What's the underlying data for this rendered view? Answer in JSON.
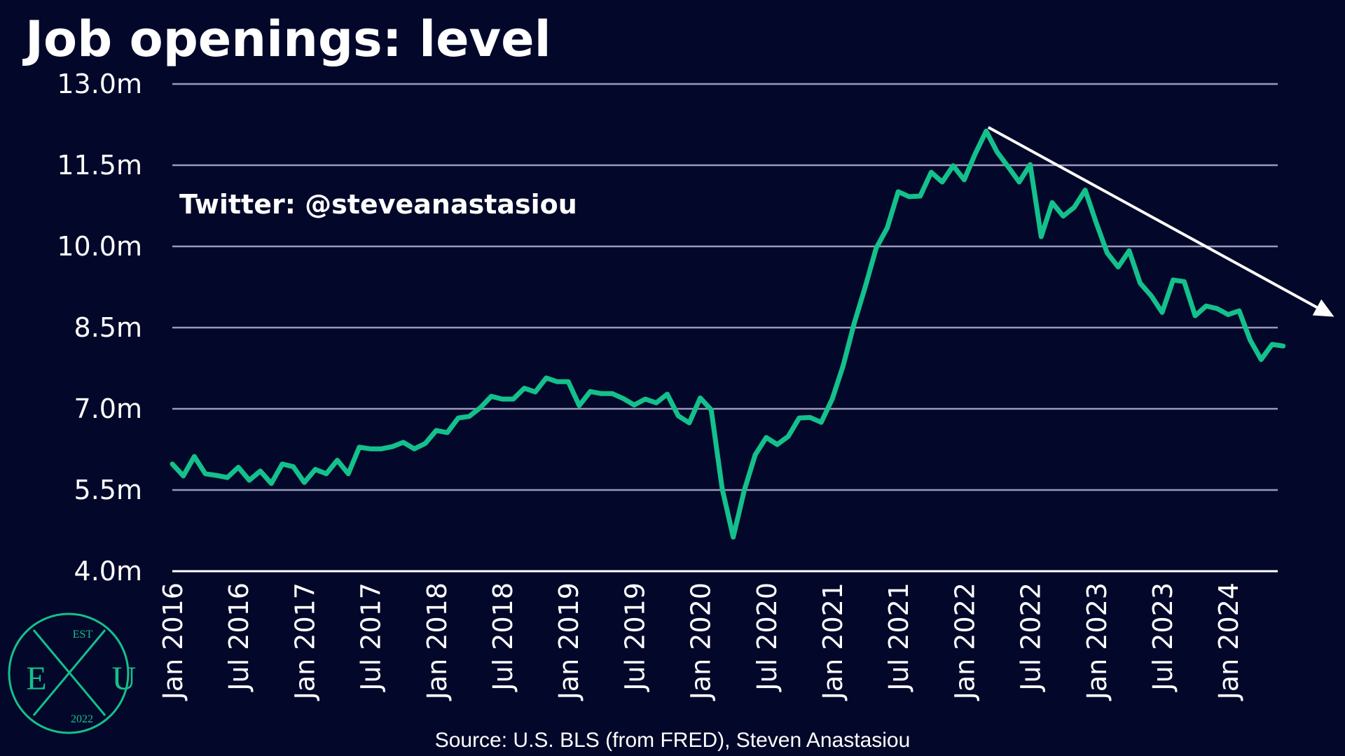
{
  "colors": {
    "background": "#03082a",
    "line": "#14c08c",
    "grid": "#9a9ab8",
    "text": "#ffffff",
    "arrow": "#ffffff",
    "logo": "#14c08c"
  },
  "watermark": "Twitter: @steveanastasiou",
  "source": "Source: U.S. BLS (from FRED), Steven Anastasiou",
  "logo": {
    "top": "EST",
    "left": "E",
    "right": "U",
    "bottom": "2022"
  },
  "chart_data": {
    "type": "line",
    "title": "Job openings: level",
    "xlabel": "",
    "ylabel": "",
    "ylim": [
      4.0,
      13.0
    ],
    "y_ticks": [
      {
        "value": 13.0,
        "label": "13.0m"
      },
      {
        "value": 11.5,
        "label": "11.5m"
      },
      {
        "value": 10.0,
        "label": "10.0m"
      },
      {
        "value": 8.5,
        "label": "8.5m"
      },
      {
        "value": 7.0,
        "label": "7.0m"
      },
      {
        "value": 5.5,
        "label": "5.5m"
      },
      {
        "value": 4.0,
        "label": "4.0m"
      }
    ],
    "x_ticks": [
      "Jan 2016",
      "Jul 2016",
      "Jan 2017",
      "Jul 2017",
      "Jan 2018",
      "Jul 2018",
      "Jan 2019",
      "Jul 2019",
      "Jan 2020",
      "Jul 2020",
      "Jan 2021",
      "Jul 2021",
      "Jan 2022",
      "Jul 2022",
      "Jan 2023",
      "Jul 2023",
      "Jan 2024"
    ],
    "x_start": "2016-01",
    "x_end": "2024-10",
    "grid": true,
    "legend": "none",
    "series": [
      {
        "values": [
          5.98,
          5.76,
          6.12,
          5.8,
          5.77,
          5.73,
          5.92,
          5.68,
          5.85,
          5.62,
          5.98,
          5.93,
          5.64,
          5.88,
          5.8,
          6.05,
          5.8,
          6.29,
          6.26,
          6.26,
          6.3,
          6.38,
          6.26,
          6.36,
          6.6,
          6.56,
          6.83,
          6.86,
          7.02,
          7.23,
          7.18,
          7.18,
          7.38,
          7.31,
          7.57,
          7.5,
          7.5,
          7.06,
          7.32,
          7.28,
          7.28,
          7.19,
          7.07,
          7.18,
          7.11,
          7.27,
          6.87,
          6.74,
          7.2,
          6.98,
          5.52,
          4.63,
          5.49,
          6.15,
          6.47,
          6.34,
          6.49,
          6.83,
          6.84,
          6.75,
          7.18,
          7.8,
          8.58,
          9.25,
          9.97,
          10.34,
          11.01,
          10.92,
          10.93,
          11.37,
          11.19,
          11.49,
          11.23,
          11.71,
          12.13,
          11.74,
          11.47,
          11.19,
          11.51,
          10.18,
          10.81,
          10.56,
          10.72,
          11.04,
          10.44,
          9.88,
          9.62,
          9.92,
          9.32,
          9.09,
          8.78,
          9.38,
          9.35,
          8.72,
          8.9,
          8.85,
          8.74,
          8.81,
          8.27,
          7.91,
          8.19,
          8.16
        ]
      }
    ],
    "annotation": {
      "type": "trend-arrow",
      "from": {
        "x": "2022-03",
        "y": 12.2
      },
      "to": {
        "x": "2024-10",
        "y": 8.7
      }
    }
  }
}
